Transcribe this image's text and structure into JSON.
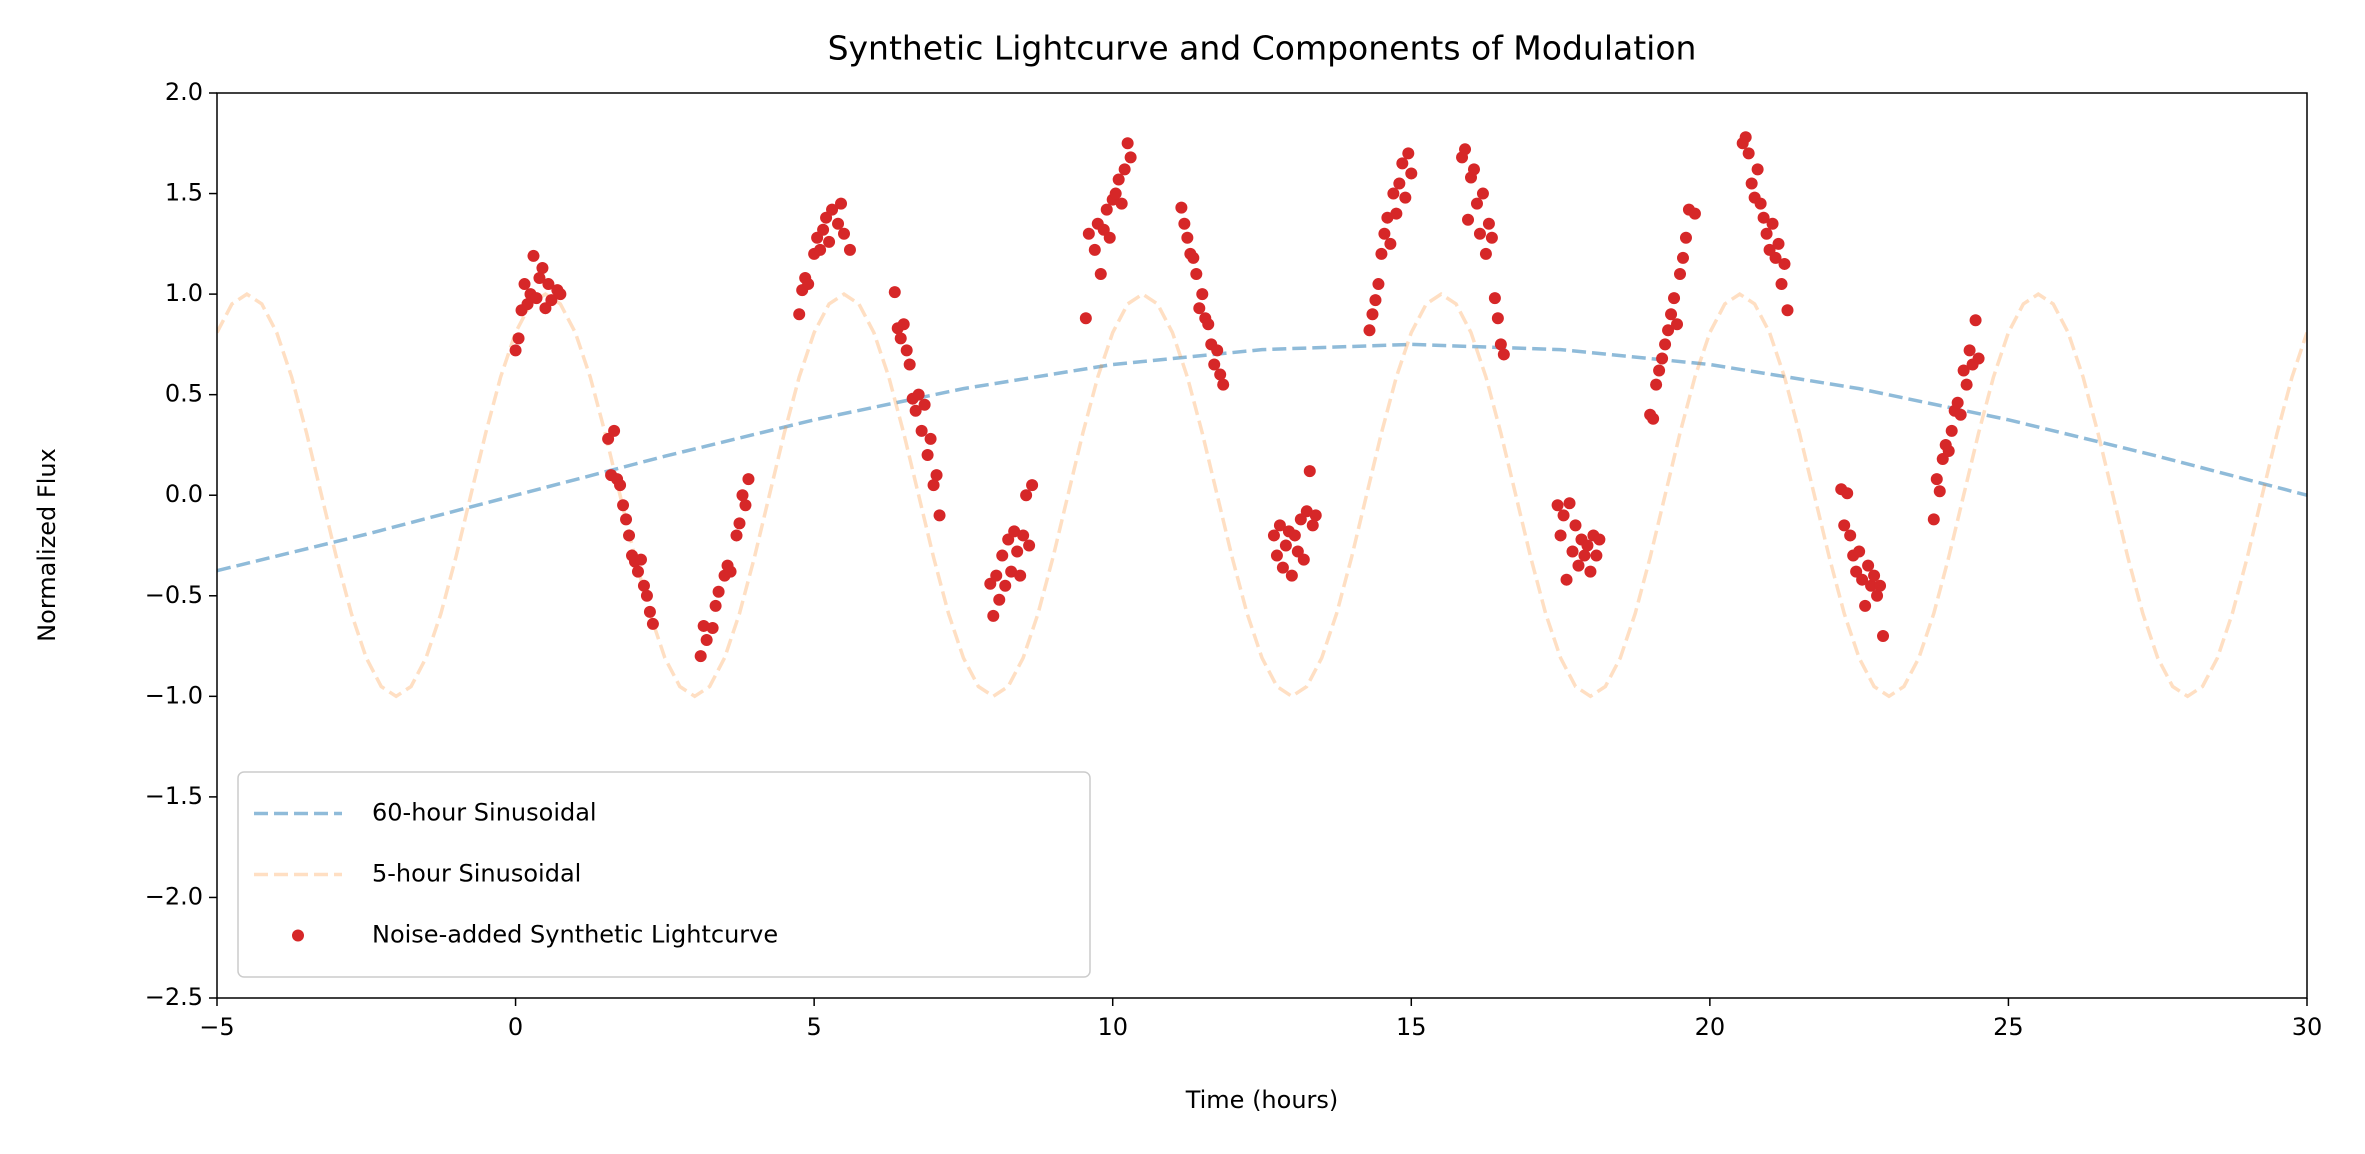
{
  "chart_data": {
    "type": "line",
    "title": "Synthetic Lightcurve and Components of Modulation",
    "xlabel": "Time (hours)",
    "ylabel": "Normalized Flux",
    "xlim": [
      -5,
      30
    ],
    "ylim": [
      -2.5,
      2.0
    ],
    "xticks": [
      {
        "value": -5,
        "label": "−5"
      },
      0,
      5,
      10,
      15,
      20,
      25,
      30
    ],
    "yticks": [
      {
        "value": -2.5,
        "label": "−2.5"
      },
      {
        "value": -2.0,
        "label": "−2.0"
      },
      {
        "value": -1.5,
        "label": "−1.5"
      },
      {
        "value": -1.0,
        "label": "−1.0"
      },
      {
        "value": -0.5,
        "label": "−0.5"
      },
      {
        "value": 0,
        "label": "0.0"
      },
      0.5,
      {
        "value": 1,
        "label": "1.0"
      },
      1.5,
      {
        "value": 2,
        "label": "2.0"
      }
    ],
    "legend": "lower left",
    "series": [
      {
        "name": "60-hour Sinusoidal",
        "color": "#1f77b4",
        "opacity": 0.5,
        "mode": "dashed-line",
        "x": [
          -5,
          -2.5,
          0,
          2.5,
          5,
          7.5,
          10,
          12.5,
          15,
          17.5,
          20,
          22.5,
          25,
          27.5,
          30
        ],
        "values": [
          -0.375,
          -0.194,
          0,
          0.194,
          0.375,
          0.53,
          0.65,
          0.724,
          0.75,
          0.724,
          0.65,
          0.53,
          0.375,
          0.194,
          0
        ]
      },
      {
        "name": "5-hour Sinusoidal",
        "color": "#ff7f0e",
        "opacity": 0.25,
        "mode": "dashed-line",
        "x": [
          -5,
          -4.75,
          -4.5,
          -4.25,
          -4,
          -3.75,
          -3.5,
          -3.25,
          -3,
          -2.75,
          -2.5,
          -2.25,
          -2,
          -1.75,
          -1.5,
          -1.25,
          -1,
          -0.75,
          -0.5,
          -0.25,
          0,
          0.25,
          0.5,
          0.75,
          1,
          1.25,
          1.5,
          1.75,
          2,
          2.25,
          2.5,
          2.75,
          3,
          3.25,
          3.5,
          3.75,
          4,
          4.25,
          4.5,
          4.75,
          5,
          5.25,
          5.5,
          5.75,
          6,
          6.25,
          6.5,
          6.75,
          7,
          7.25,
          7.5,
          7.75,
          8,
          8.25,
          8.5,
          8.75,
          9,
          9.25,
          9.5,
          9.75,
          10,
          10.25,
          10.5,
          10.75,
          11,
          11.25,
          11.5,
          11.75,
          12,
          12.25,
          12.5,
          12.75,
          13,
          13.25,
          13.5,
          13.75,
          14,
          14.25,
          14.5,
          14.75,
          15,
          15.25,
          15.5,
          15.75,
          16,
          16.25,
          16.5,
          16.75,
          17,
          17.25,
          17.5,
          17.75,
          18,
          18.25,
          18.5,
          18.75,
          19,
          19.25,
          19.5,
          19.75,
          20,
          20.25,
          20.5,
          20.75,
          21,
          21.25,
          21.5,
          21.75,
          22,
          22.25,
          22.5,
          22.75,
          23,
          23.25,
          23.5,
          23.75,
          24,
          24.25,
          24.5,
          24.75,
          25,
          25.25,
          25.5,
          25.75,
          26,
          26.25,
          26.5,
          26.75,
          27,
          27.25,
          27.5,
          27.75,
          28,
          28.25,
          28.5,
          28.75,
          29,
          29.25,
          29.5,
          29.75,
          30
        ],
        "values": [
          0.809,
          0.951,
          1,
          0.951,
          0.809,
          0.588,
          0.309,
          0,
          -0.309,
          -0.588,
          -0.809,
          -0.951,
          -1,
          -0.951,
          -0.809,
          -0.588,
          -0.309,
          0,
          0.309,
          0.588,
          0.809,
          0.951,
          1,
          0.951,
          0.809,
          0.588,
          0.309,
          0,
          -0.309,
          -0.588,
          -0.809,
          -0.951,
          -1,
          -0.951,
          -0.809,
          -0.588,
          -0.309,
          0,
          0.309,
          0.588,
          0.809,
          0.951,
          1,
          0.951,
          0.809,
          0.588,
          0.309,
          0,
          -0.309,
          -0.588,
          -0.809,
          -0.951,
          -1,
          -0.951,
          -0.809,
          -0.588,
          -0.309,
          0,
          0.309,
          0.588,
          0.809,
          0.951,
          1,
          0.951,
          0.809,
          0.588,
          0.309,
          0,
          -0.309,
          -0.588,
          -0.809,
          -0.951,
          -1,
          -0.951,
          -0.809,
          -0.588,
          -0.309,
          0,
          0.309,
          0.588,
          0.809,
          0.951,
          1,
          0.951,
          0.809,
          0.588,
          0.309,
          0,
          -0.309,
          -0.588,
          -0.809,
          -0.951,
          -1,
          -0.951,
          -0.809,
          -0.588,
          -0.309,
          0,
          0.309,
          0.588,
          0.809,
          0.951,
          1,
          0.951,
          0.809,
          0.588,
          0.309,
          0,
          -0.309,
          -0.588,
          -0.809,
          -0.951,
          -1,
          -0.951,
          -0.809,
          -0.588,
          -0.309,
          0,
          0.309,
          0.588,
          0.809,
          0.951,
          1,
          0.951,
          0.809,
          0.588,
          0.309,
          0,
          -0.309,
          -0.588,
          -0.809,
          -0.951,
          -1,
          -0.951,
          -0.809,
          -0.588,
          -0.309,
          0,
          0.309,
          0.588,
          0.809
        ]
      },
      {
        "name": "Noise-added Synthetic Lightcurve",
        "color": "#d62728",
        "opacity": 1,
        "mode": "marker",
        "x": [
          0.0,
          0.05,
          0.1,
          0.15,
          0.2,
          0.25,
          0.3,
          0.35,
          0.4,
          0.45,
          0.5,
          0.55,
          0.6,
          0.7,
          0.75,
          1.55,
          1.6,
          1.65,
          1.7,
          1.75,
          1.8,
          1.85,
          1.9,
          1.95,
          2.0,
          2.05,
          2.1,
          2.15,
          2.2,
          2.25,
          2.3,
          3.1,
          3.15,
          3.2,
          3.3,
          3.35,
          3.4,
          3.5,
          3.55,
          3.6,
          3.7,
          3.75,
          3.8,
          3.85,
          3.9,
          4.75,
          4.8,
          4.85,
          4.9,
          5.0,
          5.05,
          5.1,
          5.15,
          5.2,
          5.25,
          5.3,
          5.4,
          5.45,
          5.5,
          5.6,
          6.35,
          6.4,
          6.45,
          6.5,
          6.55,
          6.6,
          6.65,
          6.7,
          6.75,
          6.8,
          6.85,
          6.9,
          6.95,
          7.0,
          7.05,
          7.1,
          7.95,
          8.0,
          8.05,
          8.1,
          8.15,
          8.2,
          8.25,
          8.3,
          8.35,
          8.4,
          8.45,
          8.5,
          8.55,
          8.6,
          8.65,
          9.55,
          9.6,
          9.7,
          9.75,
          9.8,
          9.85,
          9.9,
          9.95,
          10.0,
          10.05,
          10.1,
          10.15,
          10.2,
          10.25,
          10.3,
          11.15,
          11.2,
          11.25,
          11.3,
          11.35,
          11.4,
          11.45,
          11.5,
          11.55,
          11.6,
          11.65,
          11.7,
          11.75,
          11.8,
          11.85,
          12.7,
          12.75,
          12.8,
          12.85,
          12.9,
          12.95,
          13.0,
          13.05,
          13.1,
          13.15,
          13.2,
          13.25,
          13.3,
          13.35,
          13.4,
          14.3,
          14.35,
          14.4,
          14.45,
          14.5,
          14.55,
          14.6,
          14.65,
          14.7,
          14.75,
          14.8,
          14.85,
          14.9,
          14.95,
          15.0,
          15.85,
          15.9,
          15.95,
          16.0,
          16.05,
          16.1,
          16.15,
          16.2,
          16.25,
          16.3,
          16.35,
          16.4,
          16.45,
          16.5,
          16.55,
          17.45,
          17.5,
          17.55,
          17.6,
          17.65,
          17.7,
          17.75,
          17.8,
          17.85,
          17.9,
          17.95,
          18.0,
          18.05,
          18.1,
          18.15,
          19.0,
          19.05,
          19.1,
          19.15,
          19.2,
          19.25,
          19.3,
          19.35,
          19.4,
          19.45,
          19.5,
          19.55,
          19.6,
          19.65,
          19.75,
          20.55,
          20.6,
          20.65,
          20.7,
          20.75,
          20.8,
          20.85,
          20.9,
          20.95,
          21.0,
          21.05,
          21.1,
          21.15,
          21.2,
          21.25,
          21.3,
          22.2,
          22.25,
          22.3,
          22.35,
          22.4,
          22.45,
          22.5,
          22.55,
          22.6,
          22.65,
          22.7,
          22.75,
          22.8,
          22.85,
          22.9,
          23.75,
          23.8,
          23.85,
          23.9,
          23.95,
          24.0,
          24.05,
          24.1,
          24.15,
          24.2,
          24.25,
          24.3,
          24.35,
          24.4,
          24.45,
          24.5
        ],
        "values": [
          0.72,
          0.78,
          0.92,
          1.05,
          0.95,
          1.0,
          1.19,
          0.98,
          1.08,
          1.13,
          0.93,
          1.05,
          0.97,
          1.02,
          1.0,
          0.28,
          0.1,
          0.32,
          0.08,
          0.05,
          -0.05,
          -0.12,
          -0.2,
          -0.3,
          -0.33,
          -0.38,
          -0.32,
          -0.45,
          -0.5,
          -0.58,
          -0.64,
          -0.8,
          -0.65,
          -0.72,
          -0.66,
          -0.55,
          -0.48,
          -0.4,
          -0.35,
          -0.38,
          -0.2,
          -0.14,
          0.0,
          -0.05,
          0.08,
          0.9,
          1.02,
          1.08,
          1.05,
          1.2,
          1.28,
          1.22,
          1.32,
          1.38,
          1.26,
          1.42,
          1.35,
          1.45,
          1.3,
          1.22,
          1.01,
          0.83,
          0.78,
          0.85,
          0.72,
          0.65,
          0.48,
          0.42,
          0.5,
          0.32,
          0.45,
          0.2,
          0.28,
          0.05,
          0.1,
          -0.1,
          -0.44,
          -0.6,
          -0.4,
          -0.52,
          -0.3,
          -0.45,
          -0.22,
          -0.38,
          -0.18,
          -0.28,
          -0.4,
          -0.2,
          0.0,
          -0.25,
          0.05,
          0.88,
          1.3,
          1.22,
          1.35,
          1.1,
          1.32,
          1.42,
          1.28,
          1.47,
          1.5,
          1.57,
          1.45,
          1.62,
          1.75,
          1.68,
          1.43,
          1.35,
          1.28,
          1.2,
          1.18,
          1.1,
          0.93,
          1.0,
          0.88,
          0.85,
          0.75,
          0.65,
          0.72,
          0.6,
          0.55,
          -0.2,
          -0.3,
          -0.15,
          -0.36,
          -0.25,
          -0.18,
          -0.4,
          -0.2,
          -0.28,
          -0.12,
          -0.32,
          -0.08,
          0.12,
          -0.15,
          -0.1,
          0.82,
          0.9,
          0.97,
          1.05,
          1.2,
          1.3,
          1.38,
          1.25,
          1.5,
          1.4,
          1.55,
          1.65,
          1.48,
          1.7,
          1.6,
          1.68,
          1.72,
          1.37,
          1.58,
          1.62,
          1.45,
          1.3,
          1.5,
          1.2,
          1.35,
          1.28,
          0.98,
          0.88,
          0.75,
          0.7,
          -0.05,
          -0.2,
          -0.1,
          -0.42,
          -0.04,
          -0.28,
          -0.15,
          -0.35,
          -0.22,
          -0.3,
          -0.25,
          -0.38,
          -0.2,
          -0.3,
          -0.22,
          0.4,
          0.38,
          0.55,
          0.62,
          0.68,
          0.75,
          0.82,
          0.9,
          0.98,
          0.85,
          1.1,
          1.18,
          1.28,
          1.42,
          1.4,
          1.75,
          1.78,
          1.7,
          1.55,
          1.48,
          1.62,
          1.45,
          1.38,
          1.3,
          1.22,
          1.35,
          1.18,
          1.25,
          1.05,
          1.15,
          0.92,
          0.03,
          -0.15,
          0.01,
          -0.2,
          -0.3,
          -0.38,
          -0.28,
          -0.42,
          -0.55,
          -0.35,
          -0.45,
          -0.4,
          -0.5,
          -0.45,
          -0.7,
          -0.12,
          0.08,
          0.02,
          0.18,
          0.25,
          0.22,
          0.32,
          0.42,
          0.46,
          0.4,
          0.62,
          0.55,
          0.72,
          0.65,
          0.87,
          0.68
        ]
      }
    ]
  }
}
